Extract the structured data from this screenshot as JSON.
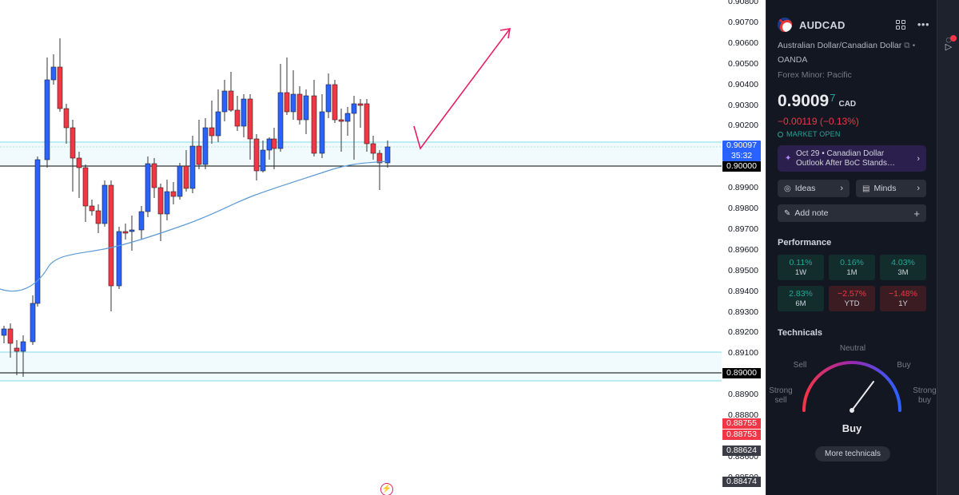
{
  "chart": {
    "price_axis": [
      "0.90800",
      "0.90700",
      "0.90600",
      "0.90500",
      "0.90400",
      "0.90300",
      "0.90200",
      "0.90100",
      "0.90000",
      "0.89900",
      "0.89800",
      "0.89700",
      "0.89600",
      "0.89500",
      "0.89400",
      "0.89300",
      "0.89200",
      "0.89100",
      "0.89000",
      "0.88900",
      "0.88800",
      "0.88700",
      "0.88600",
      "0.88500"
    ],
    "last_price_tag": "0.90097",
    "countdown": "35:32",
    "level_tag_1": "0.90000",
    "level_tag_2": "0.89000",
    "red_tag_1": "0.88755",
    "red_tag_2": "0.88753",
    "gray_tag_1": "0.88624",
    "gray_tag_2": "0.88474",
    "colors": {
      "up": "#2962ff",
      "down": "#f23645",
      "ma": "#5b9bd5",
      "arrow": "#e91e63",
      "zone": "#80deea"
    }
  },
  "panel": {
    "symbol": "AUDCAD",
    "full_name": "Australian Dollar/Canadian Dollar",
    "broker": "OANDA",
    "category": "Forex Minor: Pacific",
    "price_main": "0.9009",
    "price_sup": "7",
    "currency": "CAD",
    "change": "−0.00119 (−0.13%)",
    "market_status": "MARKET OPEN",
    "news": "Oct 29  •  Canadian Dollar Outlook After BoC Stands…",
    "ideas_label": "Ideas",
    "minds_label": "Minds",
    "add_note_label": "Add note",
    "performance_title": "Performance",
    "performance": [
      {
        "value": "0.11%",
        "period": "1W"
      },
      {
        "value": "0.16%",
        "period": "1M"
      },
      {
        "value": "4.03%",
        "period": "3M"
      },
      {
        "value": "2.83%",
        "period": "6M"
      },
      {
        "value": "−2.57%",
        "period": "YTD"
      },
      {
        "value": "−1.48%",
        "period": "1Y"
      }
    ],
    "technicals_title": "Technicals",
    "gauge": {
      "neutral": "Neutral",
      "sell": "Sell",
      "buy": "Buy",
      "strong_sell": "Strong sell",
      "strong_buy": "Strong buy",
      "result": "Buy"
    },
    "more_technicals": "More technicals"
  }
}
